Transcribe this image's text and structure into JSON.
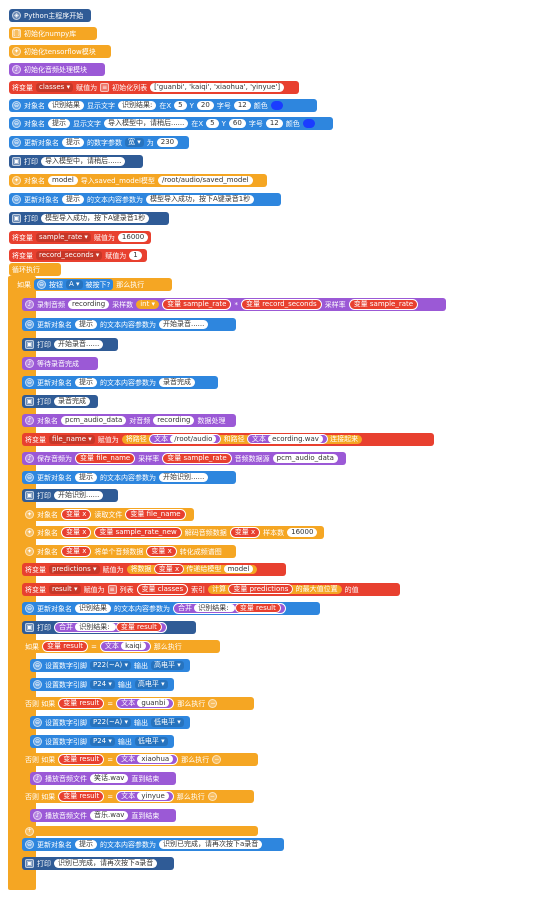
{
  "blocks": {
    "start": "Python主程序开始",
    "init_numpy": "初始化numpy库",
    "init_tf": "初始化tensorflow模块",
    "init_audio": "初始化音频处理模块",
    "set_classes": {
      "prefix": "将变量",
      "var": "classes",
      "mid": "赋值为",
      "list_label": "初始化列表",
      "list_value": "['guanbi', 'kaiqi', 'xiaohua', 'yinyue']"
    },
    "obj_result": {
      "a": "对象名",
      "name": "识别结果",
      "b": "显示文字",
      "text": "识别结果: ",
      "c": "在X",
      "x": "5",
      "d": "Y",
      "y": "20",
      "e": "字号",
      "size": "12",
      "f": "颜色"
    },
    "obj_tip": {
      "a": "对象名",
      "name": "提示",
      "b": "显示文字",
      "text": "导入模型中，请稍后......",
      "c": "在X",
      "x": "5",
      "d": "Y",
      "y": "60",
      "e": "字号",
      "size": "12",
      "f": "颜色"
    },
    "update_width": {
      "a": "更新对象名",
      "name": "提示",
      "b": "的数字参数",
      "param": "宽",
      "c": "为",
      "val": "230"
    },
    "print1": {
      "a": "打印",
      "text": "导入模型中，请稍后......"
    },
    "load_model": {
      "a": "对象名",
      "name": "model",
      "b": "导入saved_model模型",
      "path": "/root/audio/saved_model"
    },
    "update_tip1": {
      "a": "更新对象名",
      "name": "提示",
      "b": "的文本内容参数为",
      "text": "模型导入成功，按下A键录音1秒"
    },
    "print2": {
      "a": "打印",
      "text": "模型导入成功，按下A键录音1秒"
    },
    "set_rate": {
      "a": "将变量",
      "var": "sample_rate",
      "b": "赋值为",
      "val": "16000"
    },
    "set_secs": {
      "a": "将变量",
      "var": "record_seconds",
      "b": "赋值为",
      "val": "1"
    },
    "loop": "循环执行",
    "if_btn": {
      "a": "如果",
      "btn": "按钮",
      "key": "A",
      "state": "被按下?",
      "b": "那么执行"
    },
    "record": {
      "a": "录制音频",
      "name": "recording",
      "b": "采样数",
      "int": "int",
      "v1": "变量 sample_rate",
      "op": "*",
      "v2": "变量 record_seconds",
      "c": "采样率",
      "v3": "变量 sample_rate"
    },
    "update_tip2": {
      "a": "更新对象名",
      "name": "提示",
      "b": "的文本内容参数为",
      "text": "开始录音......"
    },
    "print3": {
      "a": "打印",
      "text": "开始录音......"
    },
    "wait": "等待录音完成",
    "update_tip3": {
      "a": "更新对象名",
      "name": "提示",
      "b": "的文本内容参数为",
      "text": "录音完成"
    },
    "print4": {
      "a": "打印",
      "text": "录音完成"
    },
    "pcm": {
      "a": "对象名",
      "name": "pcm_audio_data",
      "b": "对音频",
      "rec": "recording",
      "c": "数据处理"
    },
    "set_fname": {
      "a": "将变量",
      "var": "file_name",
      "b": "赋值为",
      "c": "将路径",
      "t1": "文本",
      "p1": "/root/audio",
      "d": "和路径",
      "t2": "文本",
      "p2": "ecording.wav",
      "e": "连接起来"
    },
    "save": {
      "a": "保存音频为",
      "v1": "变量 file_name",
      "b": "采样率",
      "v2": "变量 sample_rate",
      "c": "音频数据源",
      "src": "pcm_audio_data"
    },
    "update_tip4": {
      "a": "更新对象名",
      "name": "提示",
      "b": "的文本内容参数为",
      "text": "开始识别......"
    },
    "print5": {
      "a": "打印",
      "text": "开始识别......"
    },
    "read": {
      "a": "对象名",
      "v": "变量 x",
      "b": "读取文件",
      "v2": "变量 file_name"
    },
    "decode": {
      "a": "对象名",
      "v": "变量 x",
      "v2": "变量 sample_rate_new",
      "b": "解码音频数据",
      "v3": "变量 x",
      "c": "样本数",
      "n": "16000"
    },
    "spec": {
      "a": "对象名",
      "v": "变量 x",
      "b": "将单个音频数据",
      "v2": "变量 x",
      "c": "转化成频谱图"
    },
    "set_pred": {
      "a": "将变量",
      "var": "predictions",
      "b": "赋值为",
      "c": "将数据",
      "v": "变量 x",
      "d": "传递给模型",
      "m": "model"
    },
    "set_result": {
      "a": "将变量",
      "var": "result",
      "b": "赋值为",
      "c": "列表",
      "v": "变量 classes",
      "d": "索引",
      "e": "计算",
      "v2": "变量 predictions",
      "f": "的最大值位置",
      "g": "的值"
    },
    "update_res": {
      "a": "更新对象名",
      "name": "识别结果",
      "b": "的文本内容参数为",
      "join": "合并",
      "t": "识别结果: ",
      "v": "变量 result"
    },
    "print6": {
      "a": "打印",
      "join": "合并",
      "t": "识别结果: ",
      "v": "变量 result"
    },
    "if_kaiqi": {
      "a": "如果",
      "v": "变量 result",
      "op": "=",
      "t": "文本",
      "val": "kaiqi",
      "b": "那么执行"
    },
    "pin1": {
      "a": "设置数字引脚",
      "pin": "P22(~A)",
      "b": "输出",
      "lvl": "高电平"
    },
    "pin2": {
      "a": "设置数字引脚",
      "pin": "P24",
      "b": "输出",
      "lvl": "高电平"
    },
    "elif_guanbi": {
      "a": "否则 如果",
      "v": "变量 result",
      "op": "=",
      "t": "文本",
      "val": "guanbi",
      "b": "那么执行"
    },
    "pin3": {
      "a": "设置数字引脚",
      "pin": "P22(~A)",
      "b": "输出",
      "lvl": "低电平"
    },
    "pin4": {
      "a": "设置数字引脚",
      "pin": "P24",
      "b": "输出",
      "lvl": "低电平"
    },
    "elif_xiaohua": {
      "a": "否则 如果",
      "v": "变量 result",
      "op": "=",
      "t": "文本",
      "val": "xiaohua",
      "b": "那么执行"
    },
    "play1": {
      "a": "播放音频文件",
      "file": "笑话.wav",
      "b": "直到结束"
    },
    "elif_yinyue": {
      "a": "否则 如果",
      "v": "变量 result",
      "op": "=",
      "t": "文本",
      "val": "yinyue",
      "b": "那么执行"
    },
    "play2": {
      "a": "播放音频文件",
      "file": "音乐.wav",
      "b": "直到结束"
    },
    "update_done": {
      "a": "更新对象名",
      "name": "提示",
      "b": "的文本内容参数为",
      "text": "识别已完成，请再次按下a录音"
    },
    "print7": {
      "a": "打印",
      "text": "识别已完成，请再次按下a录音"
    }
  },
  "colors": {
    "navy": "#2f5b96",
    "orange": "#f5a623",
    "purple": "#9b59d6",
    "red": "#e8402f",
    "blue": "#2e86de",
    "text_blue": "#1a3cff"
  }
}
